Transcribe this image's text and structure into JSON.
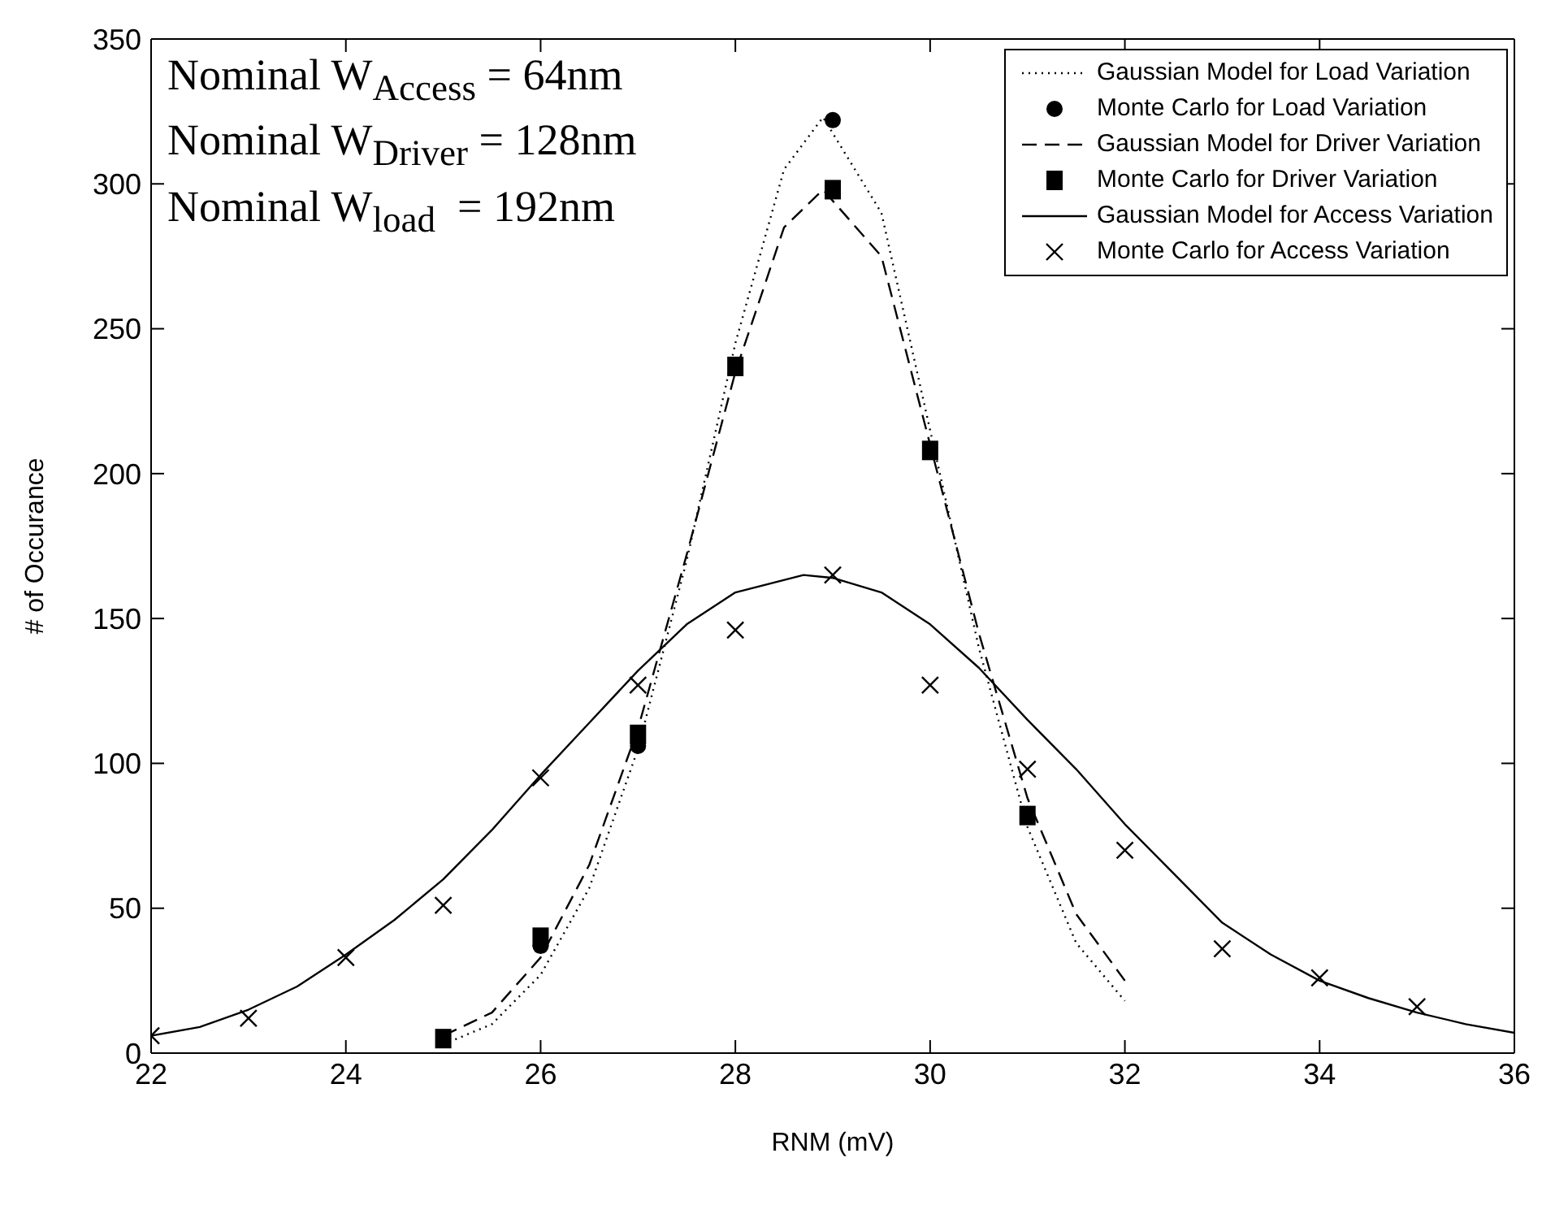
{
  "chart_data": {
    "type": "line",
    "xlabel": "RNM (mV)",
    "ylabel": "# of Occurance",
    "annotations": [
      "Nominal W$_{Access}$ = 64nm",
      "Nominal W$_{Driver}$ = 128nm",
      "Nominal W$_{load}$  = 192nm"
    ],
    "xlim": [
      22,
      36
    ],
    "xticks": [
      22,
      24,
      26,
      28,
      30,
      32,
      34,
      36
    ],
    "ylim": [
      0,
      350
    ],
    "yticks": [
      0,
      50,
      100,
      150,
      200,
      250,
      300,
      350
    ],
    "legend": "top right",
    "series": [
      {
        "name": "Gaussian Model for Load Variation",
        "color": "#000000",
        "line_style": "dotted",
        "marker": "none",
        "x": [
          25,
          25.5,
          26,
          26.5,
          27,
          27.5,
          28,
          28.5,
          28.9,
          29.5,
          30,
          30.5,
          31,
          31.5,
          32
        ],
        "values": [
          3,
          10,
          27,
          57,
          105,
          170,
          245,
          305,
          323,
          290,
          215,
          140,
          78,
          38,
          18
        ]
      },
      {
        "name": "Monte Carlo for Load Variation",
        "type": "scatter",
        "color": "#000000",
        "marker": "circle",
        "x": [
          26,
          27,
          29
        ],
        "values": [
          37,
          106,
          322
        ]
      },
      {
        "name": "Gaussian Model for Driver Variation",
        "color": "#000000",
        "line_style": "dashed",
        "marker": "none",
        "x": [
          25,
          25.5,
          26,
          26.5,
          27,
          27.5,
          28,
          28.5,
          28.9,
          29.5,
          30,
          30.5,
          31,
          31.5,
          32
        ],
        "values": [
          6,
          14,
          33,
          65,
          112,
          172,
          235,
          285,
          298,
          275,
          210,
          145,
          88,
          48,
          25
        ]
      },
      {
        "name": "Monte Carlo for Driver Variation",
        "type": "scatter",
        "color": "#000000",
        "marker": "square",
        "x": [
          25,
          26,
          27,
          28,
          29,
          30,
          31
        ],
        "values": [
          5,
          40,
          110,
          237,
          298,
          208,
          82
        ]
      },
      {
        "name": "Gaussian Model for Access Variation",
        "color": "#000000",
        "line_style": "solid",
        "marker": "none",
        "x": [
          22,
          22.5,
          23,
          23.5,
          24,
          24.5,
          25,
          25.5,
          26,
          26.5,
          27,
          27.5,
          28,
          28.7,
          29,
          29.5,
          30,
          30.5,
          31,
          31.5,
          32,
          32.5,
          33,
          33.5,
          34,
          34.5,
          35,
          35.5,
          36
        ],
        "values": [
          6,
          9,
          15,
          23,
          34,
          46,
          60,
          77,
          96,
          114,
          132,
          148,
          159,
          165,
          164,
          159,
          148,
          133,
          115,
          98,
          79,
          62,
          45,
          34,
          25,
          19,
          14,
          10,
          7
        ]
      },
      {
        "name": "Monte Carlo for Access Variation",
        "type": "scatter",
        "color": "#000000",
        "marker": "cross",
        "x": [
          22,
          23,
          24,
          25,
          26,
          27,
          28,
          29,
          30,
          31,
          32,
          33,
          34,
          35
        ],
        "values": [
          6,
          12,
          33,
          51,
          95,
          127,
          146,
          165,
          127,
          98,
          70,
          36,
          26,
          16
        ]
      }
    ]
  }
}
